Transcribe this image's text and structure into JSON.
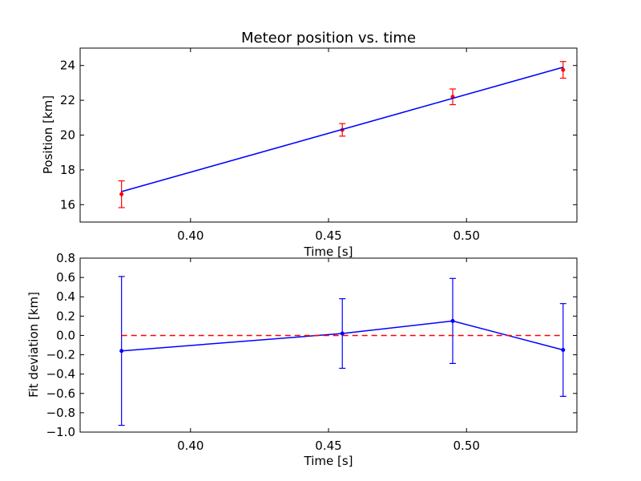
{
  "chart_data": [
    {
      "type": "line",
      "title": "Meteor position vs. time",
      "xlabel": "Time [s]",
      "ylabel": "Position [km]",
      "xlim": [
        0.36,
        0.54
      ],
      "ylim": [
        15,
        25
      ],
      "xticks": [
        "0.40",
        "0.45",
        "0.50"
      ],
      "yticks": [
        "16",
        "18",
        "20",
        "22",
        "24"
      ],
      "grid": false,
      "series": [
        {
          "type": "errorbar",
          "color": "#ff0000",
          "x": [
            0.375,
            0.455,
            0.495,
            0.535
          ],
          "y": [
            16.6,
            20.3,
            22.2,
            23.75
          ],
          "yerr": [
            0.77,
            0.36,
            0.45,
            0.48
          ]
        },
        {
          "type": "line",
          "color": "#0000ff",
          "x": [
            0.375,
            0.535
          ],
          "y": [
            16.75,
            23.9
          ]
        }
      ]
    },
    {
      "type": "line",
      "title": "",
      "xlabel": "Time [s]",
      "ylabel": "Fit deviation [km]",
      "xlim": [
        0.36,
        0.54
      ],
      "ylim": [
        -1.0,
        0.8
      ],
      "xticks": [
        "0.40",
        "0.45",
        "0.50"
      ],
      "yticks": [
        "0.8",
        "0.6",
        "0.4",
        "0.2",
        "0.0",
        "−0.2",
        "−0.4",
        "−0.6",
        "−0.8",
        "−1.0"
      ],
      "grid": false,
      "series": [
        {
          "type": "errorbar",
          "color": "#0000ff",
          "x": [
            0.375,
            0.455,
            0.495,
            0.535
          ],
          "y": [
            -0.16,
            0.02,
            0.15,
            -0.15
          ],
          "yerr": [
            0.77,
            0.36,
            0.44,
            0.48
          ]
        },
        {
          "type": "hline",
          "color": "#ff0000",
          "dash": "dashed",
          "y": 0.0
        }
      ]
    }
  ]
}
